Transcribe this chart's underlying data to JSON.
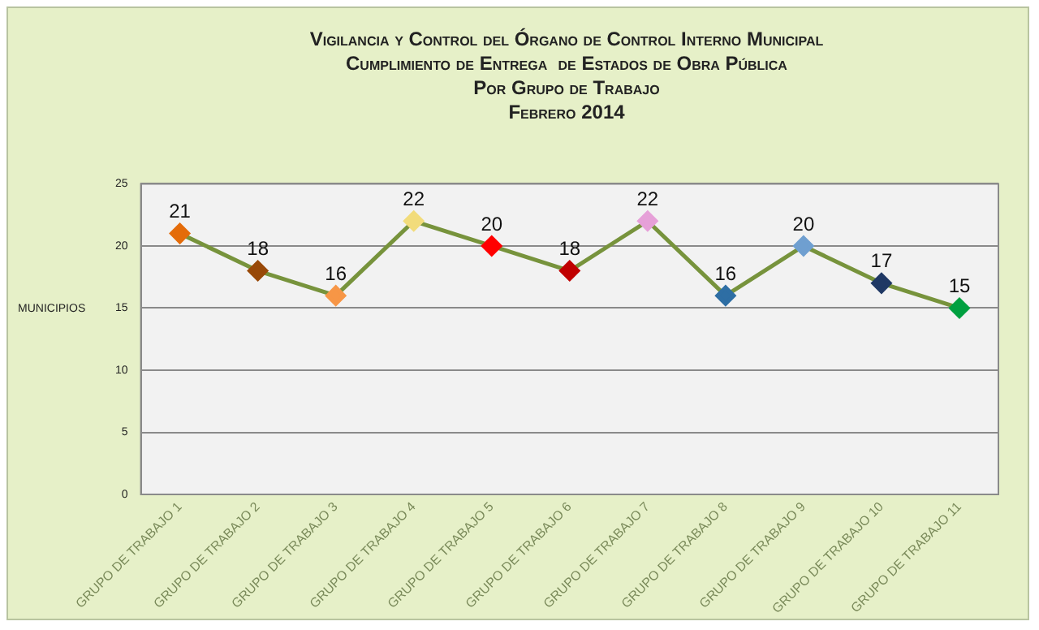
{
  "chart_data": {
    "type": "line",
    "title": "Vigilancia y Control del Órgano de Control Interno Municipal",
    "subtitle": "Cumplimiento de Entrega  de Estados de Obra Pública\nPor Grupo de Trabajo\nFebrero 2014",
    "ylabel": "MUNICIPIOS",
    "categories": [
      "GRUPO DE TRABAJO 1",
      "GRUPO DE TRABAJO 2",
      "GRUPO DE TRABAJO 3",
      "GRUPO DE TRABAJO 4",
      "GRUPO DE TRABAJO 5",
      "GRUPO DE TRABAJO 6",
      "GRUPO DE TRABAJO 7",
      "GRUPO DE TRABAJO 8",
      "GRUPO DE TRABAJO 9",
      "GRUPO DE TRABAJO 10",
      "GRUPO DE TRABAJO 11"
    ],
    "series": [
      {
        "color": "#77933c",
        "values": [
          21,
          18,
          16,
          22,
          20,
          18,
          22,
          16,
          20,
          17,
          15
        ],
        "colors": [
          "#e46c0a",
          "#984807",
          "#f79646",
          "#f2dc7b",
          "#ff0000",
          "#c00000",
          "#e6a0d8",
          "#2e6ea4",
          "#6f9fd0",
          "#1f3864",
          "#00a040"
        ]
      }
    ],
    "ylim": [
      0,
      25
    ],
    "yticks": [
      0,
      5,
      10,
      15,
      20,
      25
    ],
    "grid": "y",
    "marker": "diamond",
    "line_style": "solid",
    "data_labels": true,
    "legend": false
  }
}
